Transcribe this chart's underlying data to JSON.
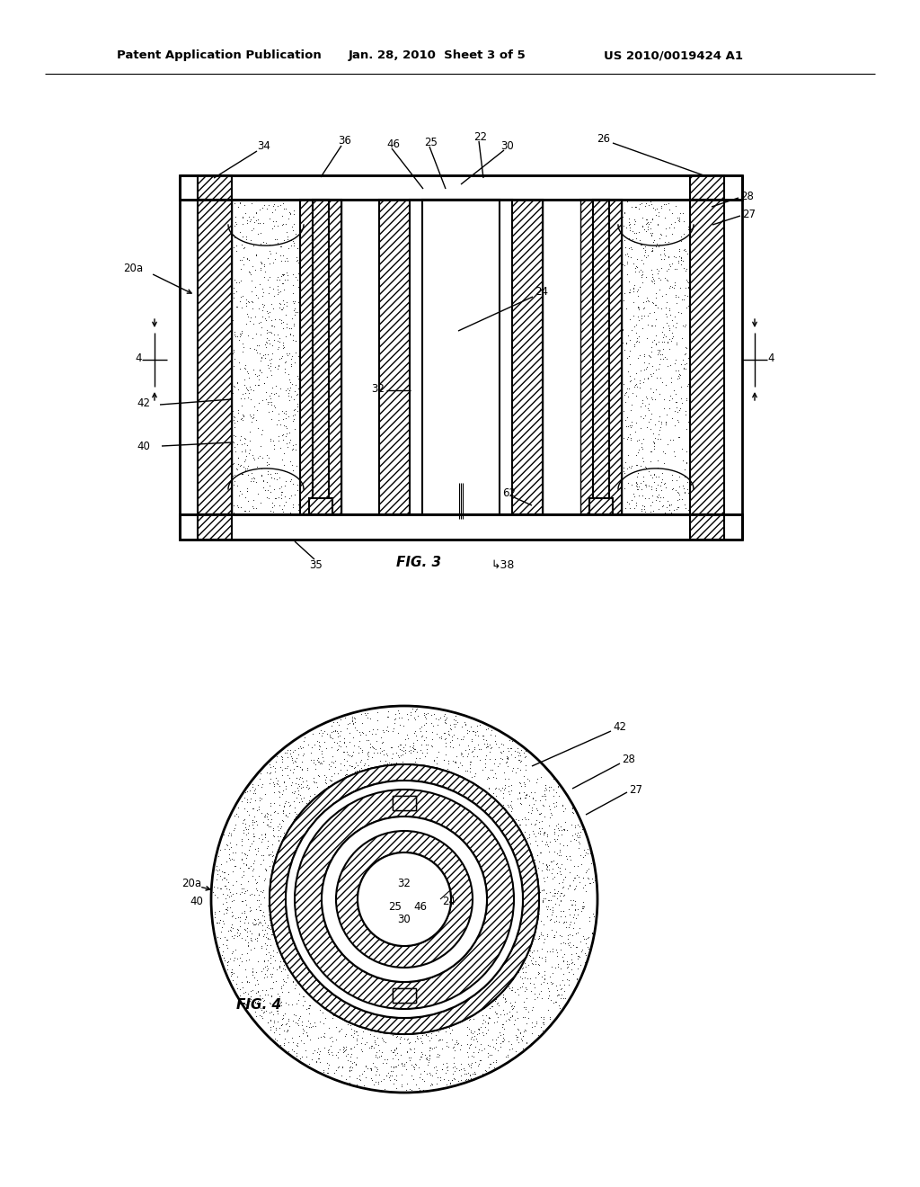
{
  "header_left": "Patent Application Publication",
  "header_mid": "Jan. 28, 2010  Sheet 3 of 5",
  "header_right": "US 2010/0019424 A1",
  "fig3_label": "FIG. 3",
  "fig4_label": "FIG. 4",
  "bg_color": "#ffffff"
}
